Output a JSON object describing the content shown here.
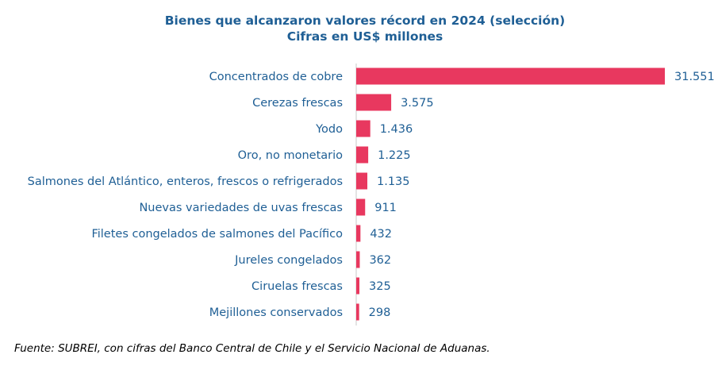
{
  "chart_data": {
    "type": "bar",
    "orientation": "horizontal",
    "title": "Bienes que alcanzaron valores récord en 2024 (selección)",
    "subtitle": "Cifras en US$ millones",
    "categories": [
      "Concentrados de cobre",
      "Cerezas frescas",
      "Yodo",
      "Oro, no monetario",
      "Salmones del Atlántico, enteros, frescos o refrigerados",
      "Nuevas variedades de uvas frescas",
      "Filetes congelados de salmones del Pacífico",
      "Jureles congelados",
      "Ciruelas frescas",
      "Mejillones conservados"
    ],
    "values": [
      31551,
      3575,
      1436,
      1225,
      1135,
      911,
      432,
      362,
      325,
      298
    ],
    "value_labels": [
      "31.551",
      "3.575",
      "1.436",
      "1.225",
      "1.135",
      "911",
      "432",
      "362",
      "325",
      "298"
    ],
    "xlim": [
      0,
      31551
    ],
    "grid": false,
    "legend": "none",
    "bar_color": "#e8385f",
    "text_color": "#1f5f95",
    "axis_color": "#c8c8c8"
  },
  "source": "Fuente: SUBREI, con cifras del Banco Central de Chile y el Servicio Nacional de Aduanas."
}
